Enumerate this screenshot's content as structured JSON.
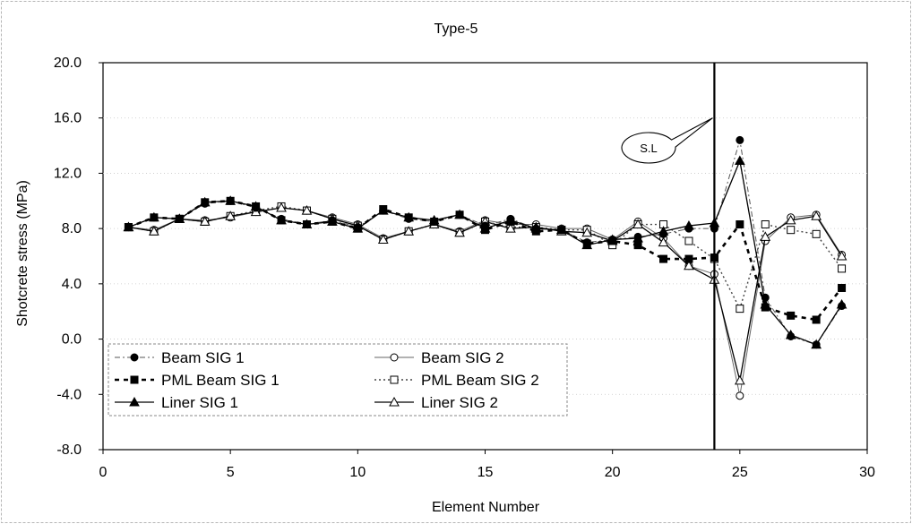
{
  "chart_data": {
    "type": "line",
    "title": "Type-5",
    "xlabel": "Element Number",
    "ylabel": "Shotcrete stress (MPa)",
    "xlim": [
      0,
      30
    ],
    "ylim": [
      -8,
      20
    ],
    "x_ticks": [
      0,
      5,
      10,
      15,
      20,
      25,
      30
    ],
    "y_ticks": [
      -8,
      -4,
      0,
      4,
      8,
      12,
      16,
      20
    ],
    "x_tick_labels": [
      "0",
      "5",
      "10",
      "15",
      "20",
      "25",
      "30"
    ],
    "y_tick_labels": [
      "-8.0",
      "-4.0",
      "0.0",
      "4.0",
      "8.0",
      "12.0",
      "16.0",
      "20.0"
    ],
    "grid": {
      "vertical": false,
      "horizontal": "faint dotted"
    },
    "x": [
      1,
      2,
      3,
      4,
      5,
      6,
      7,
      8,
      9,
      10,
      11,
      12,
      13,
      14,
      15,
      16,
      17,
      18,
      19,
      20,
      21,
      22,
      23,
      24,
      25,
      26,
      27,
      28,
      29
    ],
    "series": [
      {
        "name": "Beam SIG 1",
        "marker": "filled-circle",
        "line": "dash-dot-thin",
        "values": [
          8.1,
          8.8,
          8.7,
          9.8,
          10.0,
          9.5,
          8.7,
          8.3,
          8.6,
          8.1,
          9.3,
          8.7,
          8.5,
          9.0,
          8.2,
          8.7,
          8.0,
          7.9,
          7.0,
          7.2,
          7.4,
          7.6,
          8.0,
          8.0,
          14.4,
          3.0,
          0.2,
          -0.4,
          2.4
        ]
      },
      {
        "name": "Beam SIG 2",
        "marker": "open-circle",
        "line": "solid-thin",
        "values": [
          8.1,
          7.9,
          8.7,
          8.6,
          8.8,
          9.2,
          9.5,
          9.3,
          8.8,
          8.3,
          7.3,
          7.8,
          8.3,
          7.8,
          8.6,
          8.3,
          8.3,
          8.0,
          8.0,
          7.2,
          8.5,
          7.3,
          5.3,
          4.7,
          -4.1,
          7.1,
          8.8,
          9.0,
          6.1
        ]
      },
      {
        "name": "PML Beam SIG 1",
        "marker": "filled-square",
        "line": "dashed-thick",
        "values": [
          8.1,
          8.8,
          8.7,
          9.9,
          10.0,
          9.6,
          8.6,
          8.3,
          8.5,
          8.0,
          9.4,
          8.8,
          8.5,
          9.0,
          7.9,
          8.5,
          7.8,
          7.9,
          6.9,
          7.1,
          6.8,
          5.8,
          5.8,
          5.9,
          8.3,
          2.3,
          1.7,
          1.4,
          3.7
        ]
      },
      {
        "name": "PML Beam SIG 2",
        "marker": "open-square",
        "line": "dotted",
        "values": [
          8.1,
          7.8,
          8.7,
          8.5,
          8.9,
          9.3,
          9.6,
          9.3,
          8.7,
          8.2,
          7.2,
          7.8,
          8.3,
          7.7,
          8.5,
          8.1,
          8.1,
          7.9,
          7.9,
          6.8,
          8.3,
          8.3,
          7.1,
          5.8,
          2.2,
          8.3,
          7.9,
          7.6,
          5.1
        ]
      },
      {
        "name": "Liner SIG 1",
        "marker": "filled-triangle",
        "line": "solid",
        "values": [
          8.1,
          8.8,
          8.7,
          9.9,
          10.0,
          9.6,
          8.6,
          8.3,
          8.5,
          8.0,
          9.3,
          8.8,
          8.6,
          9.0,
          8.0,
          8.6,
          8.0,
          7.9,
          6.8,
          7.2,
          7.3,
          7.8,
          8.2,
          8.4,
          12.9,
          2.5,
          0.3,
          -0.4,
          2.5
        ]
      },
      {
        "name": "Liner SIG 2",
        "marker": "open-triangle",
        "line": "solid",
        "values": [
          8.1,
          7.8,
          8.7,
          8.5,
          8.9,
          9.2,
          9.5,
          9.3,
          8.7,
          8.2,
          7.2,
          7.8,
          8.3,
          7.7,
          8.5,
          8.0,
          8.1,
          7.8,
          7.7,
          7.1,
          8.3,
          7.0,
          5.3,
          4.3,
          -3.0,
          7.4,
          8.6,
          8.9,
          6.0
        ]
      }
    ],
    "vertical_line": {
      "x": 24
    },
    "annotation": {
      "text": "S.L",
      "points_to": {
        "x": 24,
        "y": 16
      }
    },
    "legend_placement": "lower-left"
  }
}
